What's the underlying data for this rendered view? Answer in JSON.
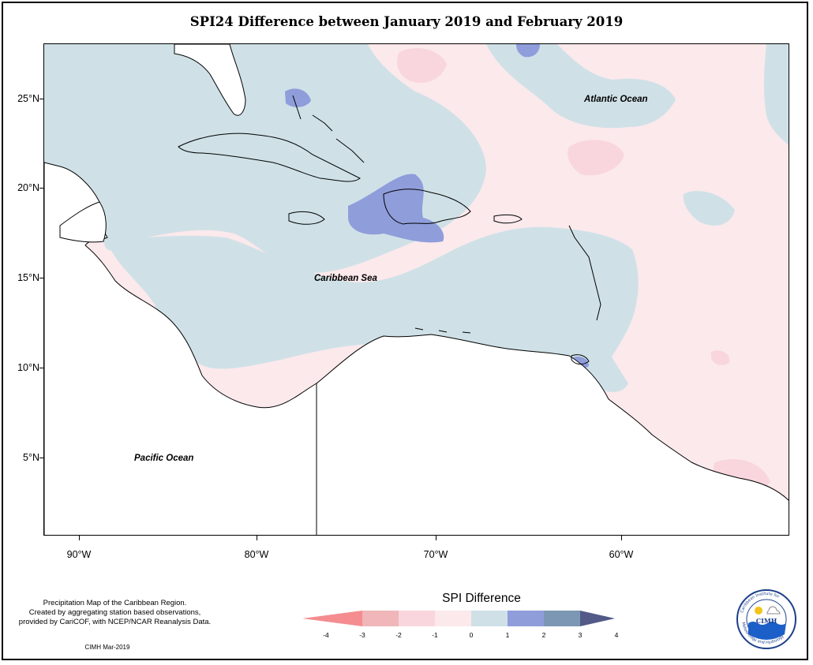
{
  "title": "SPI24 Difference between January 2019 and February 2019",
  "map": {
    "labels": {
      "atlantic": "Atlantic Ocean",
      "caribbean": "Caribbean Sea",
      "pacific": "Pacific Ocean"
    },
    "lat_labels": [
      "25°N",
      "20°N",
      "15°N",
      "10°N",
      "5°N"
    ],
    "lon_labels": [
      "90°W",
      "80°W",
      "70°W",
      "60°W"
    ],
    "colors": {
      "slightly_negative": "#fbe9ec",
      "negative": "#f9d6dd",
      "slightly_positive": "#cfe1e7",
      "positive": "#8f9ddb"
    }
  },
  "legend": {
    "title": "SPI Difference",
    "ticks": [
      "-4",
      "-3",
      "-2",
      "-1",
      "0",
      "1",
      "2",
      "3",
      "4"
    ],
    "colors": [
      "#f48c90",
      "#f0b6b9",
      "#f9d6dd",
      "#fbe9ec",
      "#cfe1e7",
      "#8f9ddb",
      "#7b97b3",
      "#535a88"
    ]
  },
  "notes": {
    "line1": "Precipitation Map of the Caribbean Region.",
    "line2": "Created by aggregating station based observations,",
    "line3": "provided by CariCOF, with NCEP/NCAR Reanalysis Data.",
    "credit": "CIMH Mar-2019"
  },
  "logo": {
    "top_text": "Caribbean Institute for",
    "bottom_text": "Meteorology and Hydrology",
    "acronym": "CIMH"
  }
}
